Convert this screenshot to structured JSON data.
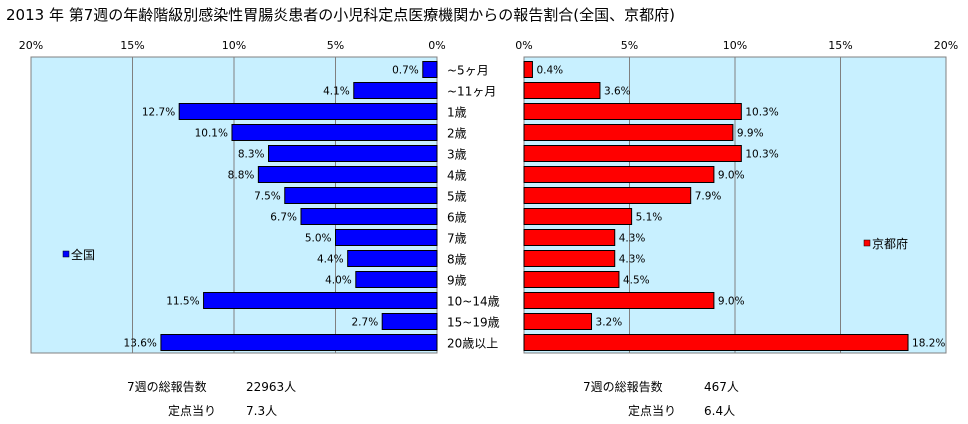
{
  "title": "2013 年 第7週の年齢階級別感染性胃腸炎患者の小児科定点医療機関からの報告割合(全国、京都府)",
  "chart_data": {
    "type": "bar",
    "orientation": "horizontal",
    "categories": [
      "~5ヶ月",
      "~11ヶ月",
      "1歳",
      "2歳",
      "3歳",
      "4歳",
      "5歳",
      "6歳",
      "7歳",
      "8歳",
      "9歳",
      "10~14歳",
      "15~19歳",
      "20歳以上"
    ],
    "xlim": [
      0,
      20
    ],
    "x_ticks": [
      "20%",
      "15%",
      "10%",
      "5%",
      "0%"
    ],
    "x_ticks_right": [
      "0%",
      "5%",
      "10%",
      "15%",
      "20%"
    ],
    "grid": true,
    "colors": {
      "national": "#0000ff",
      "kyoto": "#ff0000",
      "plot_bg": "#c8f0ff"
    },
    "series": [
      {
        "name": "全国",
        "values": [
          0.7,
          4.1,
          12.7,
          10.1,
          8.3,
          8.8,
          7.5,
          6.7,
          5.0,
          4.4,
          4.0,
          11.5,
          2.7,
          13.6
        ],
        "labels": [
          "0.7%",
          "4.1%",
          "12.7%",
          "10.1%",
          "8.3%",
          "8.8%",
          "7.5%",
          "6.7%",
          "5.0%",
          "4.4%",
          "4.0%",
          "11.5%",
          "2.7%",
          "13.6%"
        ]
      },
      {
        "name": "京都府",
        "values": [
          0.4,
          3.6,
          10.3,
          9.9,
          10.3,
          9.0,
          7.9,
          5.1,
          4.3,
          4.3,
          4.5,
          9.0,
          3.2,
          18.2
        ],
        "labels": [
          "0.4%",
          "3.6%",
          "10.3%",
          "9.9%",
          "10.3%",
          "9.0%",
          "7.9%",
          "5.1%",
          "4.3%",
          "4.3%",
          "4.5%",
          "9.0%",
          "3.2%",
          "18.2%"
        ]
      }
    ]
  },
  "stats": {
    "national": {
      "total_label": "7週の総報告数",
      "total_value": "22963人",
      "per_label": "定点当り",
      "per_value": "7.3人"
    },
    "kyoto": {
      "total_label": "7週の総報告数",
      "total_value": "467人",
      "per_label": "定点当り",
      "per_value": "6.4人"
    }
  }
}
